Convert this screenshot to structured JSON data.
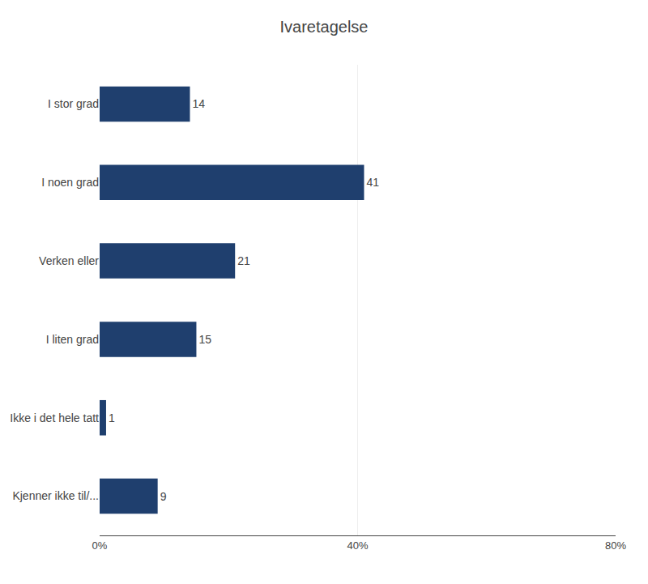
{
  "chart_data": {
    "type": "bar",
    "orientation": "horizontal",
    "title": "Ivaretagelse",
    "categories": [
      "I stor grad",
      "I noen grad",
      "Verken eller",
      "I liten grad",
      "Ikke i det hele tatt",
      "Kjenner ikke til/..."
    ],
    "values": [
      14,
      41,
      21,
      15,
      1,
      9
    ],
    "color": "#1F3F6E",
    "xlim": [
      0,
      80
    ],
    "xticks": [
      {
        "value": 0,
        "label": "0%"
      },
      {
        "value": 40,
        "label": "40%"
      },
      {
        "value": 80,
        "label": "80%"
      }
    ],
    "grid": true,
    "data_labels": true
  }
}
